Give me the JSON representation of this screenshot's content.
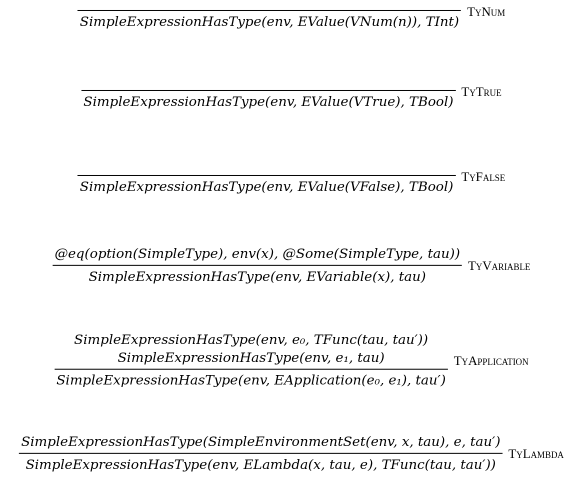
{
  "rules": [
    {
      "name": "TyNum",
      "premises": [],
      "conclusion": "SimpleExpressionHasType(env, EValue(VNum(n)), TInt)"
    },
    {
      "name": "TyTrue",
      "premises": [],
      "conclusion": "SimpleExpressionHasType(env, EValue(VTrue), TBool)"
    },
    {
      "name": "TyFalse",
      "premises": [],
      "conclusion": "SimpleExpressionHasType(env, EValue(VFalse), TBool)"
    },
    {
      "name": "TyVariable",
      "premises": [
        "@eq(option(SimpleType), env(x), @Some(SimpleType, tau))"
      ],
      "conclusion": "SimpleExpressionHasType(env, EVariable(x), tau)"
    },
    {
      "name": "TyApplication",
      "premises": [
        "SimpleExpressionHasType(env, e₀, TFunc(tau, tau′))",
        "SimpleExpressionHasType(env, e₁, tau)"
      ],
      "conclusion": "SimpleExpressionHasType(env, EApplication(e₀, e₁), tau′)"
    },
    {
      "name": "TyLambda",
      "premises": [
        "SimpleExpressionHasType(SimpleEnvironmentSet(env, x, tau), e, tau′)"
      ],
      "conclusion": "SimpleExpressionHasType(env, ELambda(x, tau, e), TFunc(tau, tau′))"
    }
  ]
}
